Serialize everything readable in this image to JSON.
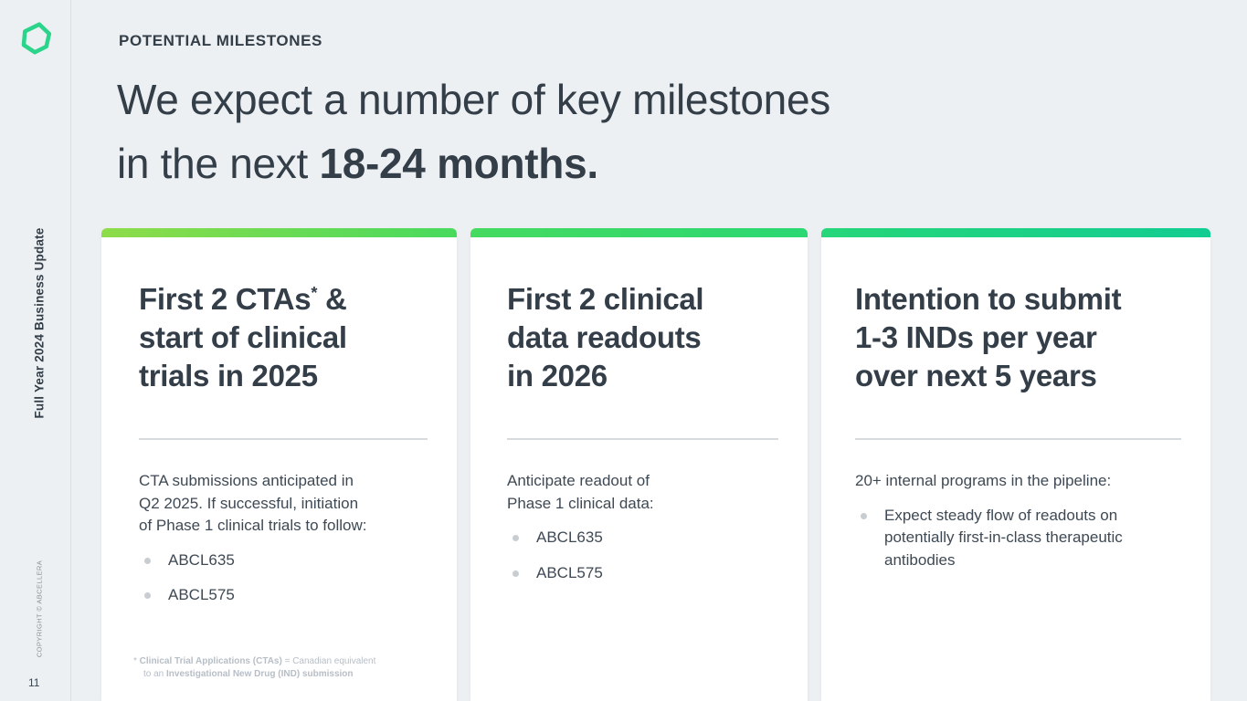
{
  "colors": {
    "background": "#EDF0F2",
    "card_background": "#FFFFFF",
    "heading_text": "#333E48",
    "body_text": "#3E4954",
    "muted_text": "#B7BEC6",
    "divider": "#D8DBDE",
    "logo_green": "#2BD48B"
  },
  "sidebar": {
    "logo": "abcellera-hexagon-logo",
    "vertical_title": "Full Year 2024 Business Update",
    "copyright": "COPYRIGHT © ABCELLERA",
    "page_number": "11"
  },
  "header": {
    "eyebrow": "POTENTIAL MILESTONES",
    "title_lines": [
      {
        "segs": [
          {
            "text": "We expect a number of key milestones"
          }
        ]
      },
      {
        "segs": [
          {
            "text": "in the next "
          },
          {
            "text": "18-24 months",
            "bold": true
          },
          {
            "text": ".",
            "bold": true
          }
        ]
      }
    ]
  },
  "cards": [
    {
      "accent_start": "#8EDC49",
      "accent_end": "#48DA5E",
      "heading_lines": [
        {
          "segs": [
            {
              "text": "First "
            },
            {
              "text": "2 CTAs",
              "bold": true
            },
            {
              "text": "*",
              "bold": true,
              "sup": true
            },
            {
              "text": " &"
            }
          ]
        },
        {
          "segs": [
            {
              "text": "start of clinical"
            }
          ]
        },
        {
          "segs": [
            {
              "text": "trials in "
            },
            {
              "text": "2025",
              "bold": true
            }
          ]
        }
      ],
      "body": "CTA submissions anticipated in\nQ2 2025. If successful, initiation\nof Phase 1 clinical trials to follow:",
      "bullets": [
        "ABCL635",
        "ABCL575"
      ],
      "footnote_lines": [
        {
          "segs": [
            {
              "text": "* "
            },
            {
              "text": "Clinical Trial Applications (CTAs)",
              "bold": true
            },
            {
              "text": " = Canadian equivalent"
            }
          ]
        },
        {
          "indent": true,
          "segs": [
            {
              "text": "to an "
            },
            {
              "text": "Investigational New Drug (IND) submission",
              "bold": true
            }
          ]
        }
      ]
    },
    {
      "accent_start": "#45DA60",
      "accent_end": "#2BD873",
      "heading_lines": [
        {
          "segs": [
            {
              "text": "First "
            },
            {
              "text": "2 clinical",
              "bold": true
            }
          ]
        },
        {
          "segs": [
            {
              "text": "data readouts",
              "bold": true
            }
          ]
        },
        {
          "segs": [
            {
              "text": "in "
            },
            {
              "text": "2026",
              "bold": true
            }
          ]
        }
      ],
      "body": "Anticipate readout of\nPhase 1 clinical data:",
      "bullets": [
        "ABCL635",
        "ABCL575"
      ],
      "footnote_lines": []
    },
    {
      "accent_start": "#26D679",
      "accent_end": "#12CD92",
      "heading_lines": [
        {
          "segs": [
            {
              "text": "Intention to submit"
            }
          ]
        },
        {
          "segs": [
            {
              "text": "1-3 INDs",
              "bold": true
            },
            {
              "text": " per year"
            }
          ]
        },
        {
          "segs": [
            {
              "text": "over "
            },
            {
              "text": "next 5 years",
              "bold": true
            }
          ]
        }
      ],
      "body": "20+ internal programs in the pipeline:",
      "bullets": [
        "Expect steady flow of readouts on potentially first-in-class therapeutic antibodies"
      ],
      "footnote_lines": []
    }
  ]
}
